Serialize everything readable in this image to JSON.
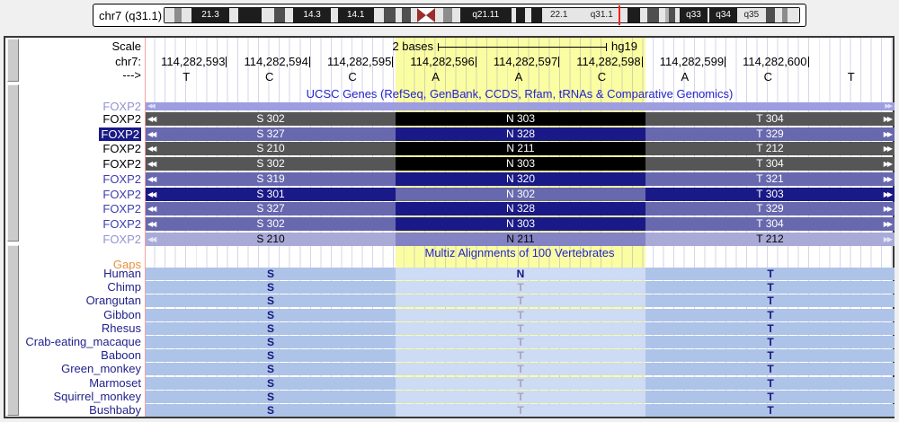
{
  "ideogram": {
    "label": "chr7 (q31.1)",
    "bands": [
      {
        "w": 2.3,
        "stain": "gneg"
      },
      {
        "w": 1.8,
        "stain": "g50"
      },
      {
        "w": 2.3,
        "stain": "gneg"
      },
      {
        "w": 4.8,
        "stain": "g100",
        "label": "21.3",
        "label_color": "white"
      },
      {
        "w": 2.2,
        "stain": "gneg"
      },
      {
        "w": 5.4,
        "stain": "g100"
      },
      {
        "w": 3.0,
        "stain": "gneg"
      },
      {
        "w": 2.6,
        "stain": "g75"
      },
      {
        "w": 2.0,
        "stain": "gneg"
      },
      {
        "w": 4.7,
        "stain": "g100",
        "label": "14.3",
        "label_color": "white"
      },
      {
        "w": 1.7,
        "stain": "gneg"
      },
      {
        "w": 4.3,
        "stain": "g100",
        "label": "14.1",
        "label_color": "white"
      },
      {
        "w": 2.4,
        "stain": "gneg"
      },
      {
        "w": 2.9,
        "stain": "g75"
      },
      {
        "w": 1.5,
        "stain": "gneg"
      },
      {
        "w": 2.0,
        "stain": "g75"
      },
      {
        "w": 1.5,
        "stain": "gneg"
      },
      {
        "w": 4.3,
        "stain": "acen"
      },
      {
        "w": 1.9,
        "stain": "gneg"
      },
      {
        "w": 2.1,
        "stain": "g50"
      },
      {
        "w": 1.9,
        "stain": "gneg"
      },
      {
        "w": 5.8,
        "stain": "g100",
        "label": "q21.11",
        "label_color": "white"
      },
      {
        "w": 1.2,
        "stain": "gneg"
      },
      {
        "w": 2.1,
        "stain": "g100"
      },
      {
        "w": 1.5,
        "stain": "gneg"
      },
      {
        "w": 2.4,
        "stain": "g100"
      },
      {
        "w": 4.0,
        "stain": "gneg",
        "label": "22.1",
        "label_color": "black"
      },
      {
        "w": 1.3,
        "stain": "gneg"
      },
      {
        "w": 4.2,
        "stain": "gneg",
        "label": "q31.1",
        "label_color": "black"
      },
      {
        "w": 1.4,
        "stain": "gneg"
      },
      {
        "w": 2.9,
        "stain": "g100"
      },
      {
        "w": 1.7,
        "stain": "gneg"
      },
      {
        "w": 2.9,
        "stain": "g75"
      },
      {
        "w": 1.4,
        "stain": "gneg"
      },
      {
        "w": 0.9,
        "stain": "g25"
      },
      {
        "w": 1.4,
        "stain": "g75"
      },
      {
        "w": 1.1,
        "stain": "gneg"
      },
      {
        "w": 3.1,
        "stain": "g100",
        "label": "q33",
        "label_color": "white"
      },
      {
        "w": 0.5,
        "stain": "gneg"
      },
      {
        "w": 2.9,
        "stain": "g100",
        "label": "q34",
        "label_color": "white"
      },
      {
        "w": 3.3,
        "stain": "gneg",
        "label": "q35",
        "label_color": "black"
      },
      {
        "w": 2.2,
        "stain": "g75"
      },
      {
        "w": 1.7,
        "stain": "gneg"
      },
      {
        "w": 1.3,
        "stain": "g50"
      },
      {
        "w": 2.7,
        "stain": "gneg"
      }
    ]
  },
  "ruler": {
    "scale_label": "Scale",
    "scale_value": "2 bases",
    "assembly": "hg19",
    "chrom_label": "chr7:",
    "strand_label": "--->",
    "positions": [
      "114,282,593",
      "114,282,594",
      "114,282,595",
      "114,282,596",
      "114,282,597",
      "114,282,598",
      "114,282,599",
      "114,282,600"
    ],
    "bases": [
      "T",
      "C",
      "C",
      "A",
      "A",
      "C",
      "A",
      "C",
      "T"
    ]
  },
  "genes_track": {
    "title": "UCSC Genes (RefSeq, GenBank, CCDS, Rfam, tRNAs & Comparative Genomics)",
    "rows": [
      {
        "label": "FOXP2",
        "label_style": "lavender",
        "bar_style": "thin",
        "codons": [
          "",
          "",
          ""
        ]
      },
      {
        "label": "FOXP2",
        "label_style": "black",
        "bar_style": "gray",
        "codons": [
          "S 302",
          "N 303",
          "T 304"
        ]
      },
      {
        "label": "FOXP2",
        "label_style": "selected",
        "bar_style": "slate",
        "codons": [
          "S 327",
          "N 328",
          "T 329"
        ]
      },
      {
        "label": "FOXP2",
        "label_style": "black",
        "bar_style": "gray",
        "codons": [
          "S 210",
          "N 211",
          "T 212"
        ]
      },
      {
        "label": "FOXP2",
        "label_style": "black",
        "bar_style": "gray",
        "codons": [
          "S 302",
          "N 303",
          "T 304"
        ]
      },
      {
        "label": "FOXP2",
        "label_style": "purple",
        "bar_style": "slate",
        "codons": [
          "S 319",
          "N 320",
          "T 321"
        ]
      },
      {
        "label": "FOXP2",
        "label_style": "purple",
        "bar_style": "navy",
        "codons": [
          "S 301",
          "N 302",
          "T 303"
        ]
      },
      {
        "label": "FOXP2",
        "label_style": "purple",
        "bar_style": "slate",
        "codons": [
          "S 327",
          "N 328",
          "T 329"
        ]
      },
      {
        "label": "FOXP2",
        "label_style": "purple",
        "bar_style": "slate",
        "codons": [
          "S 302",
          "N 303",
          "T 304"
        ]
      },
      {
        "label": "FOXP2",
        "label_style": "lavender",
        "bar_style": "light",
        "codons": [
          "S 210",
          "N 211",
          "T 212"
        ]
      }
    ]
  },
  "multiz_track": {
    "title": "Multiz Alignments of 100 Vertebrates",
    "gaps_label": "Gaps",
    "species": [
      {
        "name": "Human",
        "letters": [
          "S",
          "N",
          "T"
        ],
        "mid_dim": false
      },
      {
        "name": "Chimp",
        "letters": [
          "S",
          "T",
          "T"
        ],
        "mid_dim": true
      },
      {
        "name": "Orangutan",
        "letters": [
          "S",
          "T",
          "T"
        ],
        "mid_dim": true
      },
      {
        "name": "Gibbon",
        "letters": [
          "S",
          "T",
          "T"
        ],
        "mid_dim": true
      },
      {
        "name": "Rhesus",
        "letters": [
          "S",
          "T",
          "T"
        ],
        "mid_dim": true
      },
      {
        "name": "Crab-eating_macaque",
        "letters": [
          "S",
          "T",
          "T"
        ],
        "mid_dim": true
      },
      {
        "name": "Baboon",
        "letters": [
          "S",
          "T",
          "T"
        ],
        "mid_dim": true
      },
      {
        "name": "Green_monkey",
        "letters": [
          "S",
          "T",
          "T"
        ],
        "mid_dim": true
      },
      {
        "name": "Marmoset",
        "letters": [
          "S",
          "T",
          "T"
        ],
        "mid_dim": true
      },
      {
        "name": "Squirrel_monkey",
        "letters": [
          "S",
          "T",
          "T"
        ],
        "mid_dim": true
      },
      {
        "name": "Bushbaby",
        "letters": [
          "S",
          "T",
          "T"
        ],
        "mid_dim": true
      }
    ]
  },
  "icons": {
    "left_arrows": "◀◀",
    "right_arrows": "▶▶"
  },
  "colors": {
    "highlight_yellow": "#fafda2",
    "title_blue": "#2424cc",
    "gene_gray": "#565656",
    "gene_slate": "#6868af",
    "gene_navy": "#191987",
    "gene_lavender": "#aaaad8",
    "multiz_blue": "#aec3e8",
    "multiz_blue_highlight": "#cddbf4",
    "gaps_orange": "#e8913c",
    "species_label_blue": "#21218c",
    "centromere_red": "#9b2d2d",
    "position_marker_red": "#f32222"
  }
}
